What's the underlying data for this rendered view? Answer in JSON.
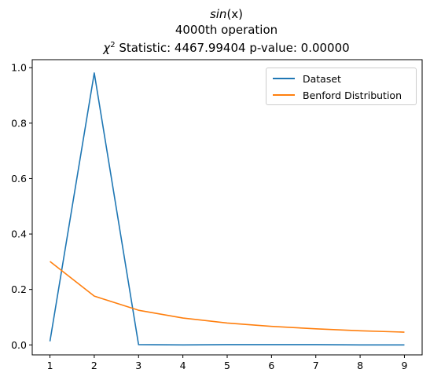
{
  "title": {
    "line1_base": "sin",
    "line1_arg": "(x)",
    "line2": "4000th operation",
    "line3_chi": "χ",
    "line3_sup": "2",
    "line3_rest": " Statistic: 4467.99404 p-value: 0.00000"
  },
  "chart_data": {
    "type": "line",
    "x": [
      1,
      2,
      3,
      4,
      5,
      6,
      7,
      8,
      9
    ],
    "series": [
      {
        "name": "Dataset",
        "color": "#1f77b4",
        "values": [
          0.013,
          0.981,
          0.001,
          0.0,
          0.001,
          0.001,
          0.001,
          0.0,
          0.0
        ]
      },
      {
        "name": "Benford Distribution",
        "color": "#ff7f0e",
        "values": [
          0.301,
          0.176,
          0.125,
          0.097,
          0.079,
          0.067,
          0.058,
          0.051,
          0.046
        ]
      }
    ],
    "xticks": [
      "1",
      "2",
      "3",
      "4",
      "5",
      "6",
      "7",
      "8",
      "9"
    ],
    "yticks": [
      "0.0",
      "0.2",
      "0.4",
      "0.6",
      "0.8",
      "1.0"
    ],
    "xlim": [
      0.6,
      9.4
    ],
    "ylim": [
      -0.036,
      1.029
    ],
    "grid": false,
    "legend_position": "upper right"
  }
}
